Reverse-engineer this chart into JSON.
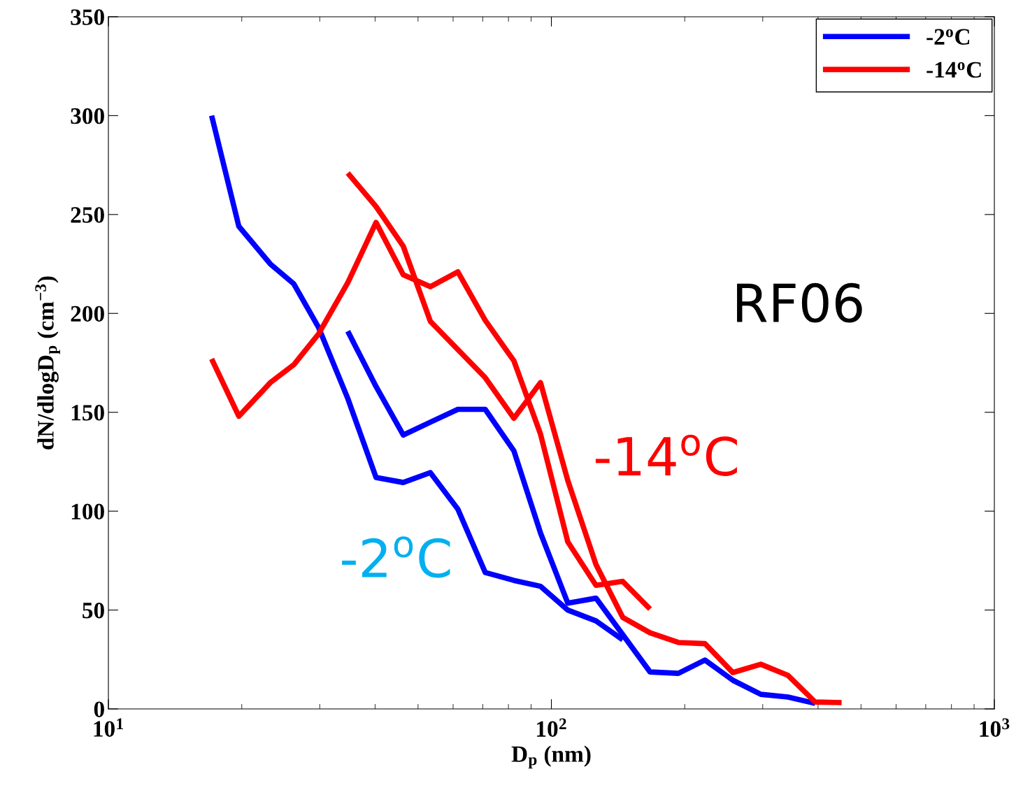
{
  "chart_data": {
    "type": "line",
    "xlabel": "D$_{p}$ (nm)",
    "ylabel": "dN/dlogD$_{p}$ (cm$^{−3}$)",
    "log": "x",
    "xlim": [
      10,
      1000
    ],
    "xticks": [
      {
        "value": 10,
        "label": "10$^{1}$"
      },
      {
        "value": 100,
        "label": "10$^{2}$"
      },
      {
        "value": 1000,
        "label": "10$^{3}$"
      }
    ],
    "ylim": [
      0,
      350
    ],
    "yticks": [
      0,
      50,
      100,
      150,
      200,
      250,
      300,
      350
    ],
    "grid": false,
    "legend": "top right",
    "line_style": "solid",
    "marker": "none",
    "series": [
      {
        "name": "-2$^{o}$C",
        "color": "#0000ff",
        "x": [
          17.1,
          19.7,
          23.2,
          26.2,
          29.8,
          34.7,
          40.2,
          46.3,
          53.3,
          61.5,
          70.9,
          82.3,
          94.5,
          108.9,
          126.1,
          144.9
        ],
        "values": [
          300,
          244,
          225,
          215,
          193,
          157,
          117,
          114.5,
          119.5,
          101,
          69,
          65,
          62,
          50,
          44.5,
          35
        ]
      },
      {
        "name": "-14$^{o}$C",
        "color": "#ff0000",
        "x": [
          17.1,
          19.7,
          23.2,
          26.2,
          29.8,
          34.7,
          40.2,
          46.3,
          53.3,
          61.5,
          70.9,
          82.3,
          94.5,
          108.9,
          126.1,
          144.9,
          167.0
        ],
        "values": [
          177,
          148,
          165,
          174,
          189.5,
          215.5,
          246,
          219.5,
          213.5,
          221,
          196.5,
          176,
          139,
          84.5,
          62.5,
          64.5,
          50.5
        ]
      },
      {
        "color": "#0000ff",
        "x": [
          34.7,
          40.2,
          46.3,
          53.3,
          61.5,
          70.9,
          82.3,
          94.5,
          108.9,
          126.1,
          167.0,
          193.5,
          222.2,
          256.8,
          297,
          342,
          394
        ],
        "values": [
          191,
          163,
          138.5,
          145,
          151.5,
          151.5,
          130.5,
          89,
          53.5,
          56,
          18.7,
          18,
          24.7,
          14.5,
          7.4,
          6,
          2.8
        ]
      },
      {
        "color": "#ff0000",
        "x": [
          34.7,
          40.2,
          46.3,
          53.3,
          70.9,
          82.3,
          94.5,
          108.9,
          126.1,
          144.9,
          167.0,
          193.5,
          222.2,
          256.8,
          297,
          342,
          394,
          452
        ],
        "values": [
          271,
          254,
          234,
          196,
          167.5,
          147,
          165,
          115.5,
          73,
          46.3,
          38.5,
          33.6,
          33,
          18.4,
          22.6,
          17,
          3.5,
          3.2
        ]
      }
    ],
    "annotations": [
      "RF06",
      "-14$^{o}$C",
      "-2$^{o}$C"
    ]
  }
}
